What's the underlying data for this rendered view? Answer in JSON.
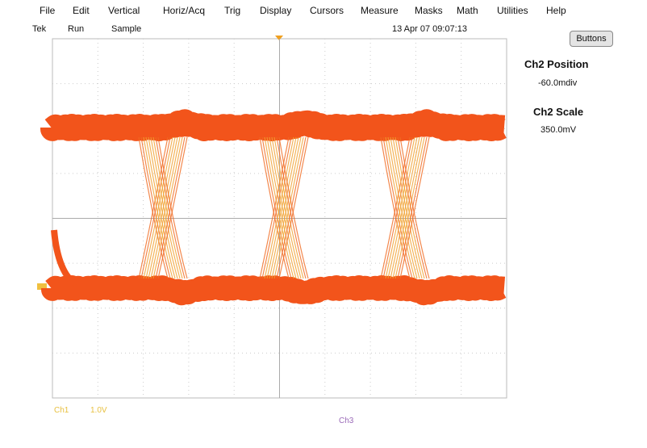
{
  "menu": [
    "File",
    "Edit",
    "Vertical",
    "Horiz/Acq",
    "Trig",
    "Display",
    "Cursors",
    "Measure",
    "Masks",
    "Math",
    "Utilities",
    "Help"
  ],
  "status": {
    "instrument": "Tek",
    "state": "Run",
    "mode": "Sample",
    "datetime": "13 Apr 07 09:07:13"
  },
  "side": {
    "button": "Buttons",
    "position_label": "Ch2 Position",
    "position_value": "-60.0mdiv",
    "scale_label": "Ch2 Scale",
    "scale_value": "350.0mV"
  },
  "footer": {
    "ch1": "Ch1",
    "ch1_scale": "1.0V",
    "ch3": "Ch3"
  }
}
